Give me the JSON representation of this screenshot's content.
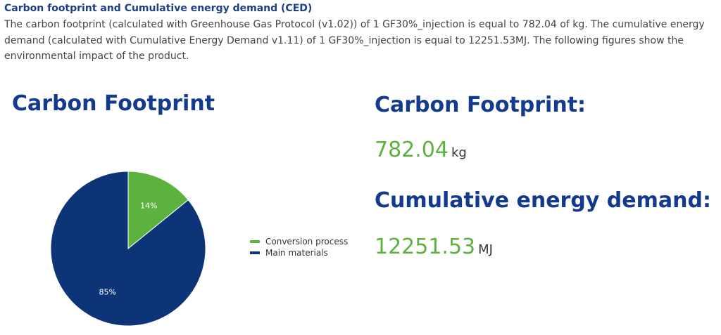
{
  "section": {
    "heading": "Carbon footprint and Cumulative energy demand (CED)",
    "intro": "The carbon footprint (calculated with Greenhouse Gas Protocol (v1.02)) of 1 GF30%_injection is equal to 782.04 of kg. The cumulative energy demand (calculated with Cumulative Energy Demand v1.11) of 1 GF30%_injection is equal to 12251.53MJ. The following figures show the environmental impact of the product."
  },
  "chart_data": {
    "type": "pie",
    "title": "Carbon Footprint",
    "categories": [
      "Conversion process",
      "Main materials"
    ],
    "values": [
      14,
      85
    ],
    "labels": [
      "14%",
      "85%"
    ],
    "colors": [
      "#5cb23f",
      "#0e3478"
    ],
    "legend_position": "right"
  },
  "metrics": {
    "carbon": {
      "title": "Carbon Footprint:",
      "value": "782.04",
      "unit": "kg"
    },
    "energy": {
      "title": "Cumulative energy demand:",
      "value": "12251.53",
      "unit": "MJ"
    }
  }
}
